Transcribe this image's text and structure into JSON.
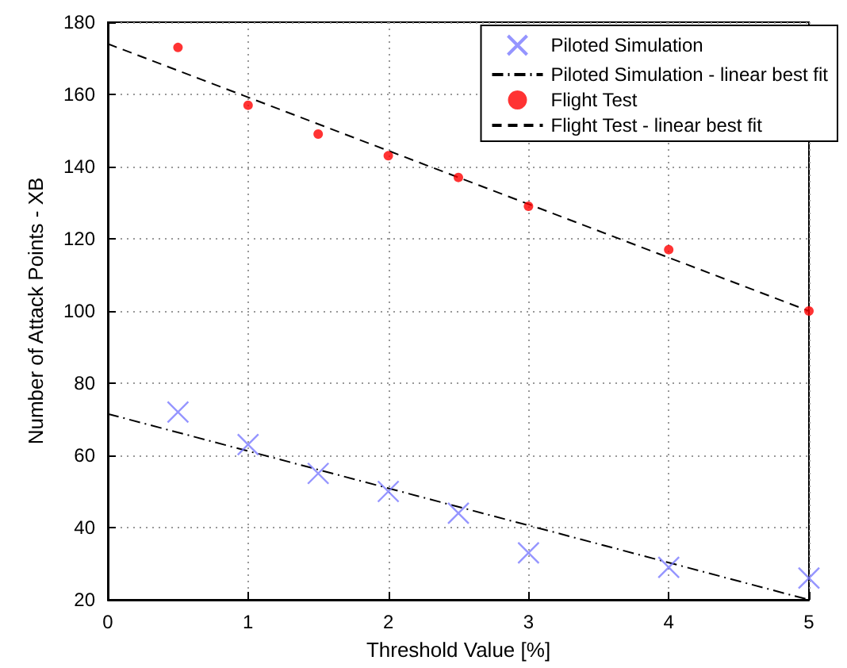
{
  "chart_data": {
    "type": "scatter",
    "xlabel": "Threshold Value [%]",
    "ylabel": "Number of Attack Points - XB",
    "xlim": [
      0,
      5
    ],
    "ylim": [
      20,
      180
    ],
    "xticks": [
      0,
      1,
      2,
      3,
      4,
      5
    ],
    "yticks": [
      20,
      40,
      60,
      80,
      100,
      120,
      140,
      160,
      180
    ],
    "grid": true,
    "legend": "top right",
    "series": [
      {
        "name": "Piloted Simulation",
        "marker": "cross",
        "color": "#7b7bff",
        "x": [
          0.5,
          1,
          1.5,
          2,
          2.5,
          3,
          4,
          5
        ],
        "values": [
          72,
          63,
          55,
          50,
          44,
          33,
          29,
          26
        ]
      },
      {
        "name": "Piloted Simulation - linear best fit",
        "type": "line",
        "marker": "none",
        "line_style": "dashdot",
        "color": "#000000",
        "x": [
          0,
          5
        ],
        "values": [
          71.5,
          20
        ]
      },
      {
        "name": "Flight Test",
        "marker": "circle",
        "color": "#ff0000",
        "x": [
          0.5,
          1,
          1.5,
          2,
          2.5,
          3,
          4,
          5
        ],
        "values": [
          173,
          157,
          149,
          143,
          137,
          129,
          117,
          100
        ]
      },
      {
        "name": "Flight Test - linear best fit",
        "type": "line",
        "marker": "none",
        "line_style": "dashed",
        "color": "#000000",
        "x": [
          0,
          5
        ],
        "values": [
          174,
          100
        ]
      }
    ]
  }
}
